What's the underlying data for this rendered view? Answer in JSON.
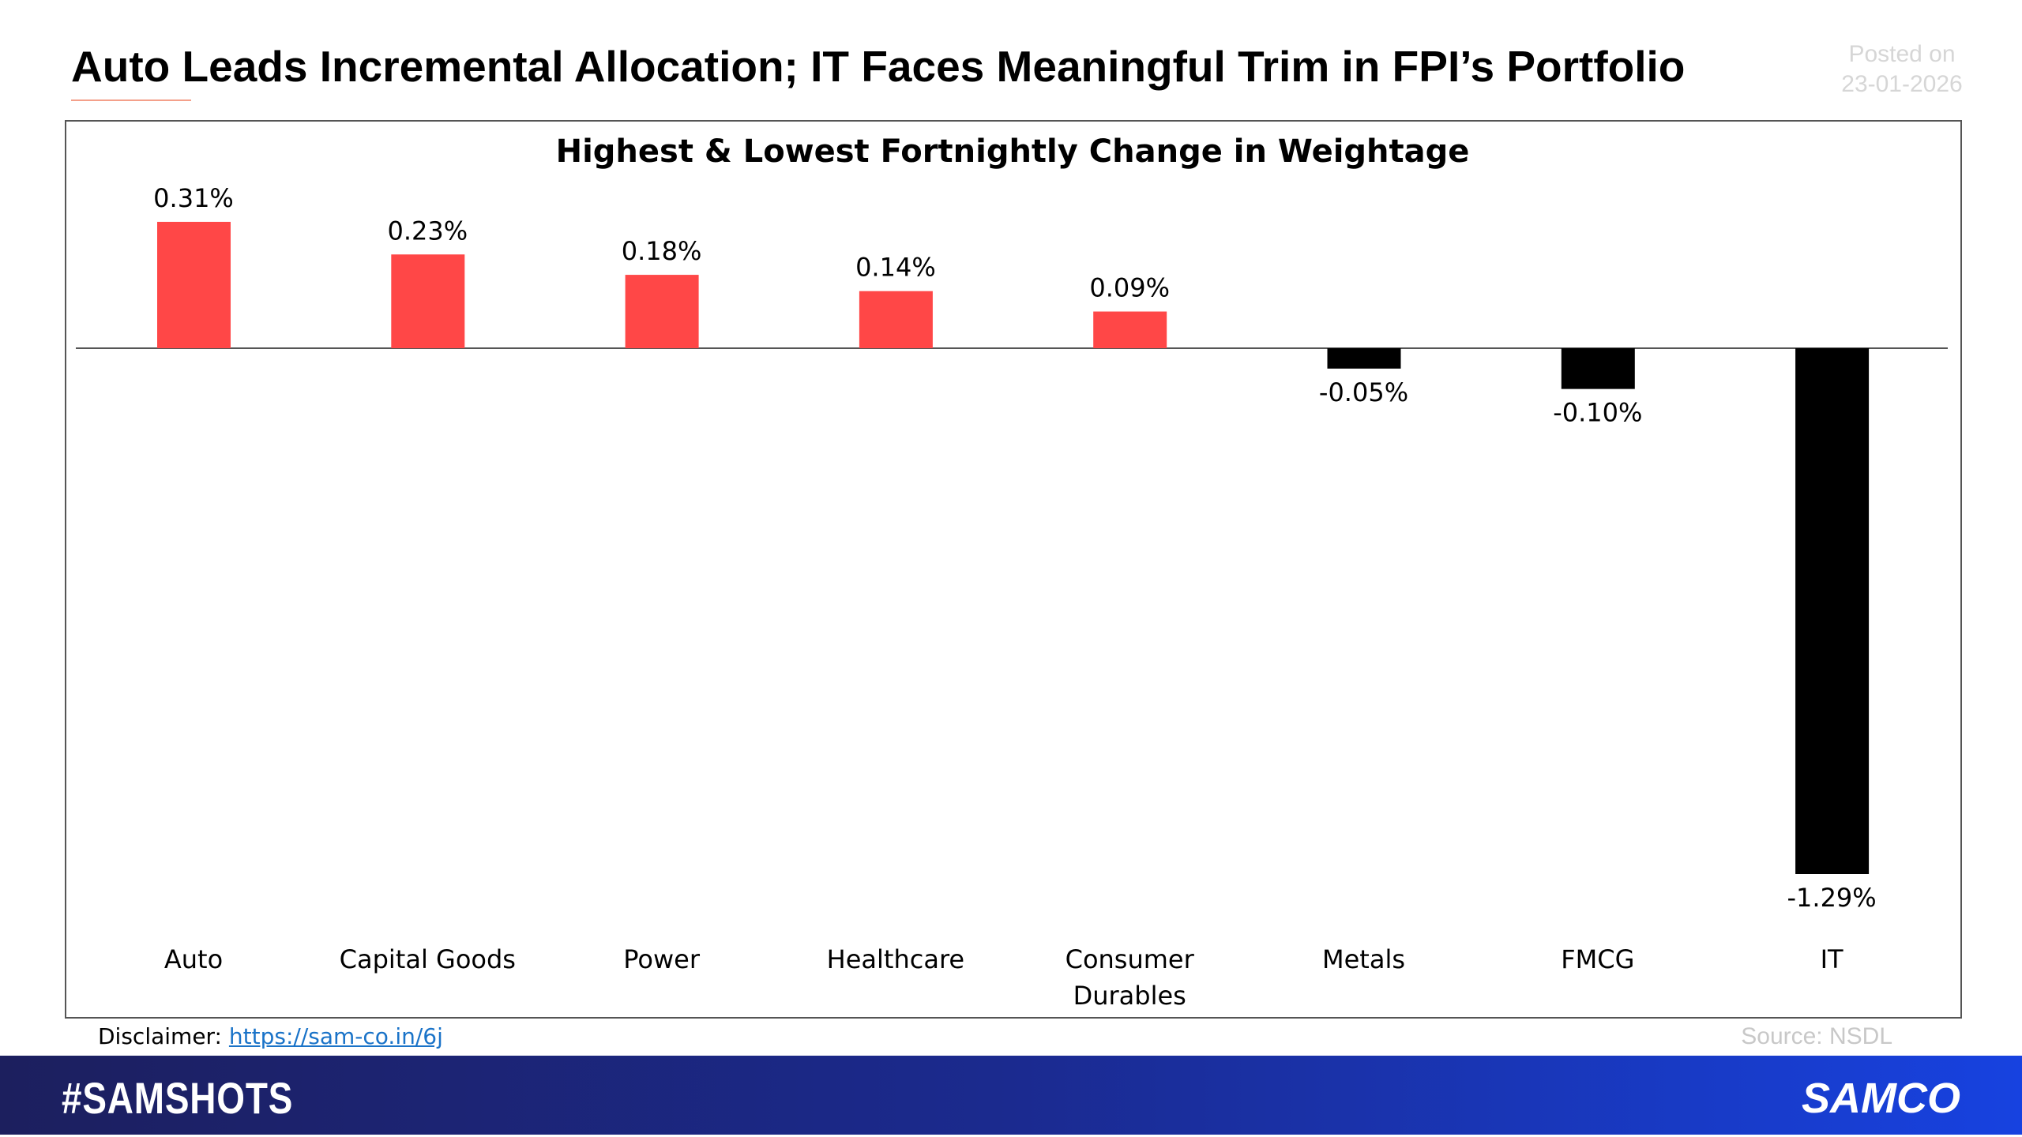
{
  "header": {
    "title": "Auto Leads Incremental Allocation; IT Faces Meaningful Trim in FPI’s Portfolio",
    "posted_label": "Posted on",
    "posted_date": "23-01-2026"
  },
  "chart_data": {
    "type": "bar",
    "title": "Highest & Lowest Fortnightly Change in Weightage",
    "categories": [
      "Auto",
      "Capital Goods",
      "Power",
      "Healthcare",
      "Consumer Durables",
      "Metals",
      "FMCG",
      "IT"
    ],
    "values": [
      0.31,
      0.23,
      0.18,
      0.14,
      0.09,
      -0.05,
      -0.1,
      -1.29
    ],
    "value_labels": [
      "0.31%",
      "0.23%",
      "0.18%",
      "0.14%",
      "0.09%",
      "-0.05%",
      "-0.10%",
      "-1.29%"
    ],
    "colors": [
      "#ff4747",
      "#ff4747",
      "#ff4747",
      "#ff4747",
      "#ff4747",
      "#000000",
      "#000000",
      "#000000"
    ]
  },
  "footer": {
    "disclaimer_label": "Disclaimer:",
    "disclaimer_link": "https://sam-co.in/6j",
    "source": "Source: NSDL",
    "hashtag": "#SAMSHOTS",
    "brand": "SAMCO"
  }
}
